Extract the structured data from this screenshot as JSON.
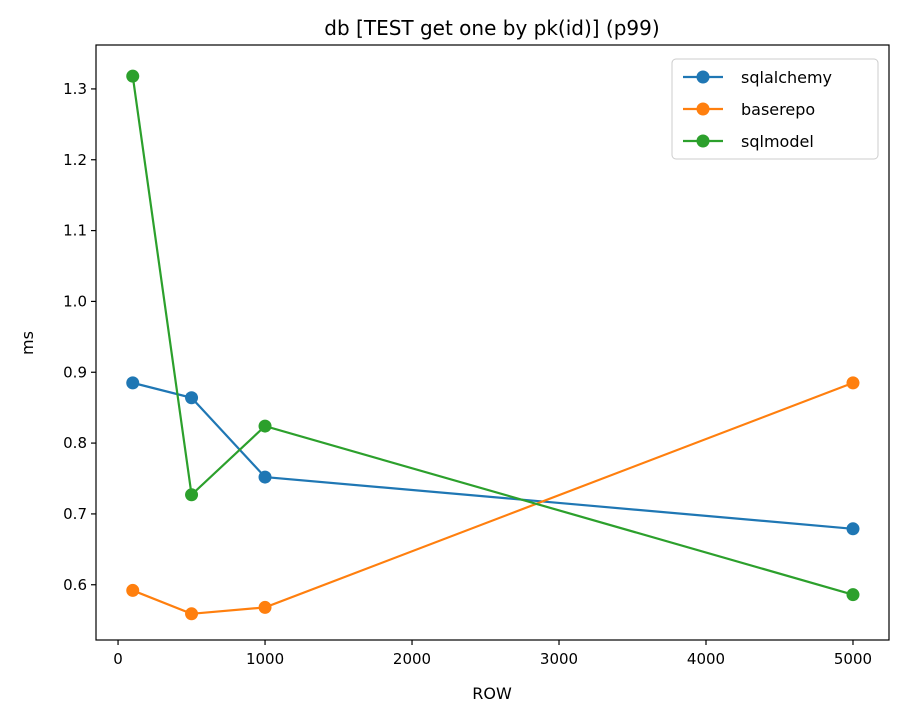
{
  "chart_data": {
    "type": "line",
    "title": "db [TEST get one by pk(id)] (p99)",
    "xlabel": "ROW",
    "ylabel": "ms",
    "x": [
      100,
      500,
      1000,
      5000
    ],
    "xlim": [
      -150,
      5245
    ],
    "ylim": [
      0.522,
      1.362
    ],
    "xticks": [
      0,
      1000,
      2000,
      3000,
      4000,
      5000
    ],
    "xtick_labels": [
      "0",
      "1000",
      "2000",
      "3000",
      "4000",
      "5000"
    ],
    "yticks": [
      0.6,
      0.7,
      0.8,
      0.9,
      1.0,
      1.1,
      1.2,
      1.3
    ],
    "ytick_labels": [
      "0.6",
      "0.7",
      "0.8",
      "0.9",
      "1.0",
      "1.1",
      "1.2",
      "1.3"
    ],
    "grid": false,
    "legend_position": "top-right",
    "series": [
      {
        "name": "sqlalchemy",
        "color": "#1f77b4",
        "values": [
          0.885,
          0.864,
          0.752,
          0.679
        ]
      },
      {
        "name": "baserepo",
        "color": "#ff7f0e",
        "values": [
          0.592,
          0.559,
          0.568,
          0.885
        ]
      },
      {
        "name": "sqlmodel",
        "color": "#2ca02c",
        "values": [
          1.318,
          0.727,
          0.824,
          0.586
        ]
      }
    ]
  }
}
